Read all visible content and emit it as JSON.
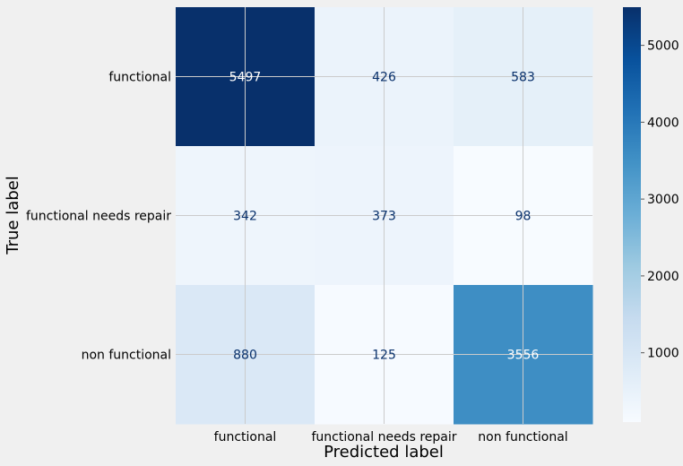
{
  "chart_data": {
    "type": "heatmap",
    "title": "",
    "xlabel": "Predicted label",
    "ylabel": "True label",
    "x_categories": [
      "functional",
      "functional needs repair",
      "non functional"
    ],
    "y_categories": [
      "functional",
      "functional needs repair",
      "non functional"
    ],
    "values": [
      [
        5497,
        426,
        583
      ],
      [
        342,
        373,
        98
      ],
      [
        880,
        125,
        3556
      ]
    ],
    "colormap": "Blues",
    "color_range": [
      98,
      5497
    ],
    "colorbar_ticks": [
      1000,
      2000,
      3000,
      4000,
      5000
    ],
    "grid": true,
    "background_color": "#f0f0f0",
    "grid_color": "#cbcbcb",
    "dark_text_color": "#08306b",
    "light_text_color": "#ffffff"
  }
}
